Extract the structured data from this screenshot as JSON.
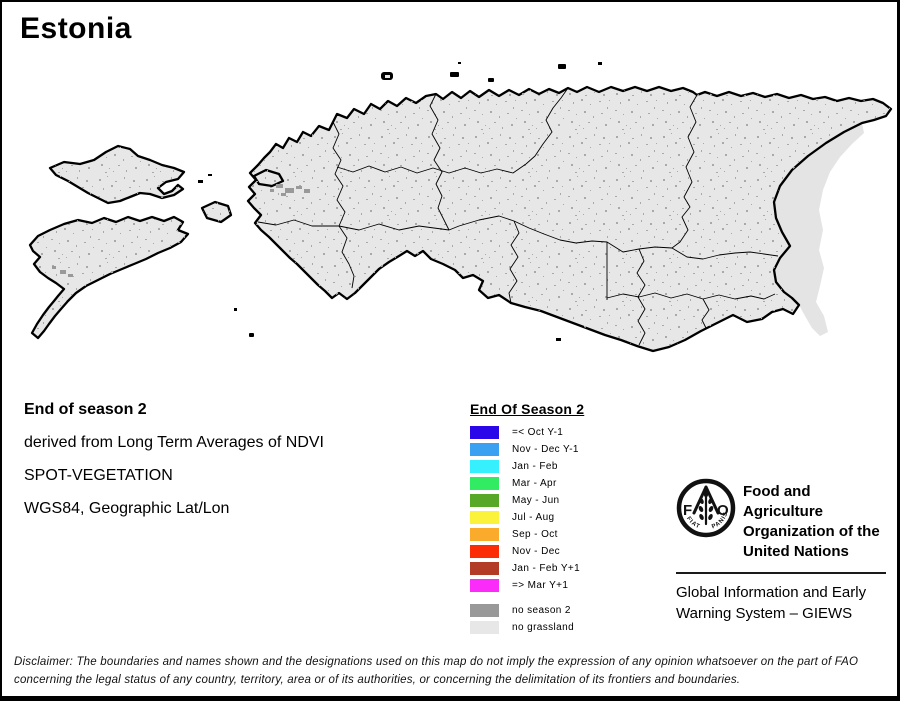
{
  "title": "Estonia",
  "info": {
    "heading": "End of season 2",
    "line1": "derived from Long Term Averages of NDVI",
    "line2": "SPOT-VEGETATION",
    "line3": "WGS84, Geographic Lat/Lon"
  },
  "legend": {
    "title": "End Of Season 2",
    "items": [
      {
        "label": "=< Oct Y-1",
        "color": "#2a06e9"
      },
      {
        "label": "Nov - Dec Y-1",
        "color": "#3aa1f2"
      },
      {
        "label": "Jan - Feb",
        "color": "#36f0fd"
      },
      {
        "label": "Mar - Apr",
        "color": "#31ec62"
      },
      {
        "label": "May - Jun",
        "color": "#56a826"
      },
      {
        "label": "Jul - Aug",
        "color": "#fbf23c"
      },
      {
        "label": "Sep - Oct",
        "color": "#fbab2c"
      },
      {
        "label": "Nov - Dec",
        "color": "#fa2d07"
      },
      {
        "label": "Jan - Feb Y+1",
        "color": "#b23c26"
      },
      {
        "label": "=> Mar Y+1",
        "color": "#fb2cfa"
      }
    ],
    "extra_items": [
      {
        "label": "no season 2",
        "color": "#999999"
      },
      {
        "label": "no grassland",
        "color": "#e7e7e7"
      }
    ]
  },
  "map": {
    "land_color": "#e7e7e7",
    "lake_color": "#e4e4e4",
    "speckle_color": "#a9a9a9",
    "no_season_color": "#999999",
    "boundary_color": "#000000"
  },
  "fao": {
    "org_lines": [
      "Food and Agriculture",
      "Organization of the",
      "United Nations"
    ],
    "giews_lines": [
      "Global Information and Early",
      "Warning System – GIEWS"
    ],
    "logo": {
      "f": "F",
      "a": "A",
      "o": "O",
      "motto_left": "FIAT",
      "motto_right": "PANIS"
    }
  },
  "disclaimer": "Disclaimer: The boundaries and names shown and the designations used on this map do not imply the expression of any opinion whatsoever on the part of FAO concerning the legal status of any country, territory, area or of its authorities, or concerning the delimitation of its frontiers and boundaries."
}
